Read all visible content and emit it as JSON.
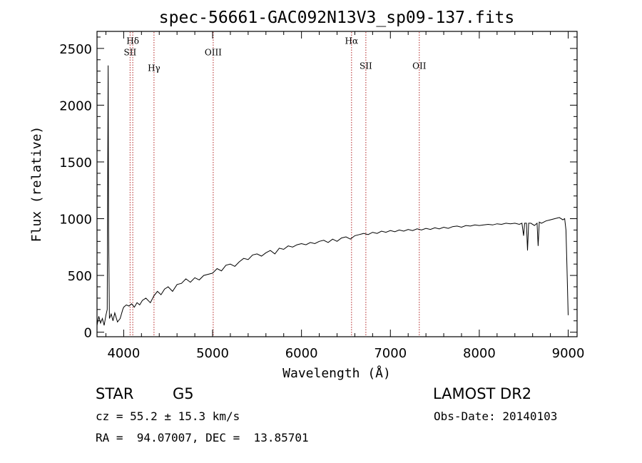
{
  "chart_data": {
    "type": "line",
    "title": "spec-56661-GAC092N13V3_sp09-137.fits",
    "xlabel": "Wavelength (Å)",
    "ylabel": "Flux (relative)",
    "xlim": [
      3700,
      9100
    ],
    "ylim": [
      -40,
      2650
    ],
    "xticks": [
      4000,
      5000,
      6000,
      7000,
      8000,
      9000
    ],
    "yticks": [
      0,
      500,
      1000,
      1500,
      2000,
      2500
    ],
    "grid": false,
    "line_color": "#000000",
    "emission_lines": [
      {
        "label": "Hδ",
        "wavelength": 4102,
        "label_flux": 2540
      },
      {
        "label": "SII",
        "wavelength": 4072,
        "label_flux": 2440
      },
      {
        "label": "Hγ",
        "wavelength": 4341,
        "label_flux": 2300
      },
      {
        "label": "OIII",
        "wavelength": 5007,
        "label_flux": 2440
      },
      {
        "label": "Hα",
        "wavelength": 6563,
        "label_flux": 2540
      },
      {
        "label": "OII",
        "wavelength": 7325,
        "label_flux": 2320
      },
      {
        "label": "SII",
        "wavelength": 6724,
        "label_flux": 2320
      }
    ],
    "marker_color": "#b22222",
    "series": [
      {
        "x": [
          3700,
          3720,
          3740,
          3760,
          3780,
          3800,
          3815,
          3825,
          3830,
          3840,
          3860,
          3880,
          3900,
          3930,
          3960,
          3990,
          4000,
          4030,
          4060,
          4090,
          4120,
          4150,
          4180,
          4210,
          4250,
          4300,
          4340,
          4380,
          4420,
          4460,
          4500,
          4550,
          4600,
          4650,
          4700,
          4750,
          4800,
          4850,
          4900,
          4950,
          5000,
          5050,
          5100,
          5150,
          5200,
          5250,
          5300,
          5350,
          5400,
          5450,
          5500,
          5550,
          5600,
          5650,
          5700,
          5750,
          5800,
          5850,
          5900,
          5950,
          6000,
          6050,
          6100,
          6150,
          6200,
          6250,
          6300,
          6350,
          6400,
          6450,
          6500,
          6550,
          6600,
          6650,
          6700,
          6750,
          6800,
          6850,
          6900,
          6950,
          7000,
          7050,
          7100,
          7150,
          7200,
          7250,
          7300,
          7350,
          7400,
          7450,
          7500,
          7550,
          7600,
          7650,
          7700,
          7750,
          7800,
          7850,
          7900,
          7950,
          8000,
          8050,
          8100,
          8150,
          8200,
          8250,
          8300,
          8350,
          8400,
          8450,
          8480,
          8498,
          8510,
          8530,
          8542,
          8555,
          8580,
          8620,
          8650,
          8662,
          8675,
          8700,
          8750,
          8800,
          8850,
          8900,
          8940,
          8960,
          8975,
          8985,
          8995,
          9000
        ],
        "y": [
          60,
          140,
          80,
          120,
          60,
          150,
          200,
          2350,
          900,
          120,
          160,
          100,
          170,
          90,
          120,
          200,
          220,
          240,
          230,
          250,
          220,
          260,
          240,
          280,
          300,
          260,
          320,
          360,
          330,
          380,
          400,
          360,
          420,
          430,
          470,
          440,
          480,
          460,
          500,
          510,
          520,
          560,
          540,
          590,
          600,
          580,
          620,
          650,
          640,
          680,
          690,
          670,
          700,
          720,
          690,
          740,
          730,
          760,
          750,
          770,
          780,
          770,
          790,
          780,
          800,
          810,
          790,
          820,
          800,
          830,
          840,
          820,
          850,
          860,
          870,
          860,
          880,
          870,
          890,
          880,
          895,
          885,
          900,
          890,
          905,
          895,
          910,
          900,
          915,
          905,
          920,
          910,
          925,
          915,
          930,
          935,
          925,
          940,
          935,
          945,
          940,
          945,
          950,
          945,
          955,
          950,
          960,
          955,
          960,
          950,
          960,
          850,
          960,
          960,
          720,
          960,
          960,
          940,
          960,
          760,
          970,
          960,
          980,
          990,
          1000,
          1010,
          990,
          1000,
          900,
          600,
          300,
          150
        ]
      }
    ]
  },
  "info": {
    "object_class": "STAR",
    "subclass": "G5",
    "survey": "LAMOST DR2",
    "redshift": "cz = 55.2 ± 15.3 km/s",
    "obs_date": "Obs-Date: 20140103",
    "coords": "RA =  94.07007, DEC =  13.85701"
  }
}
